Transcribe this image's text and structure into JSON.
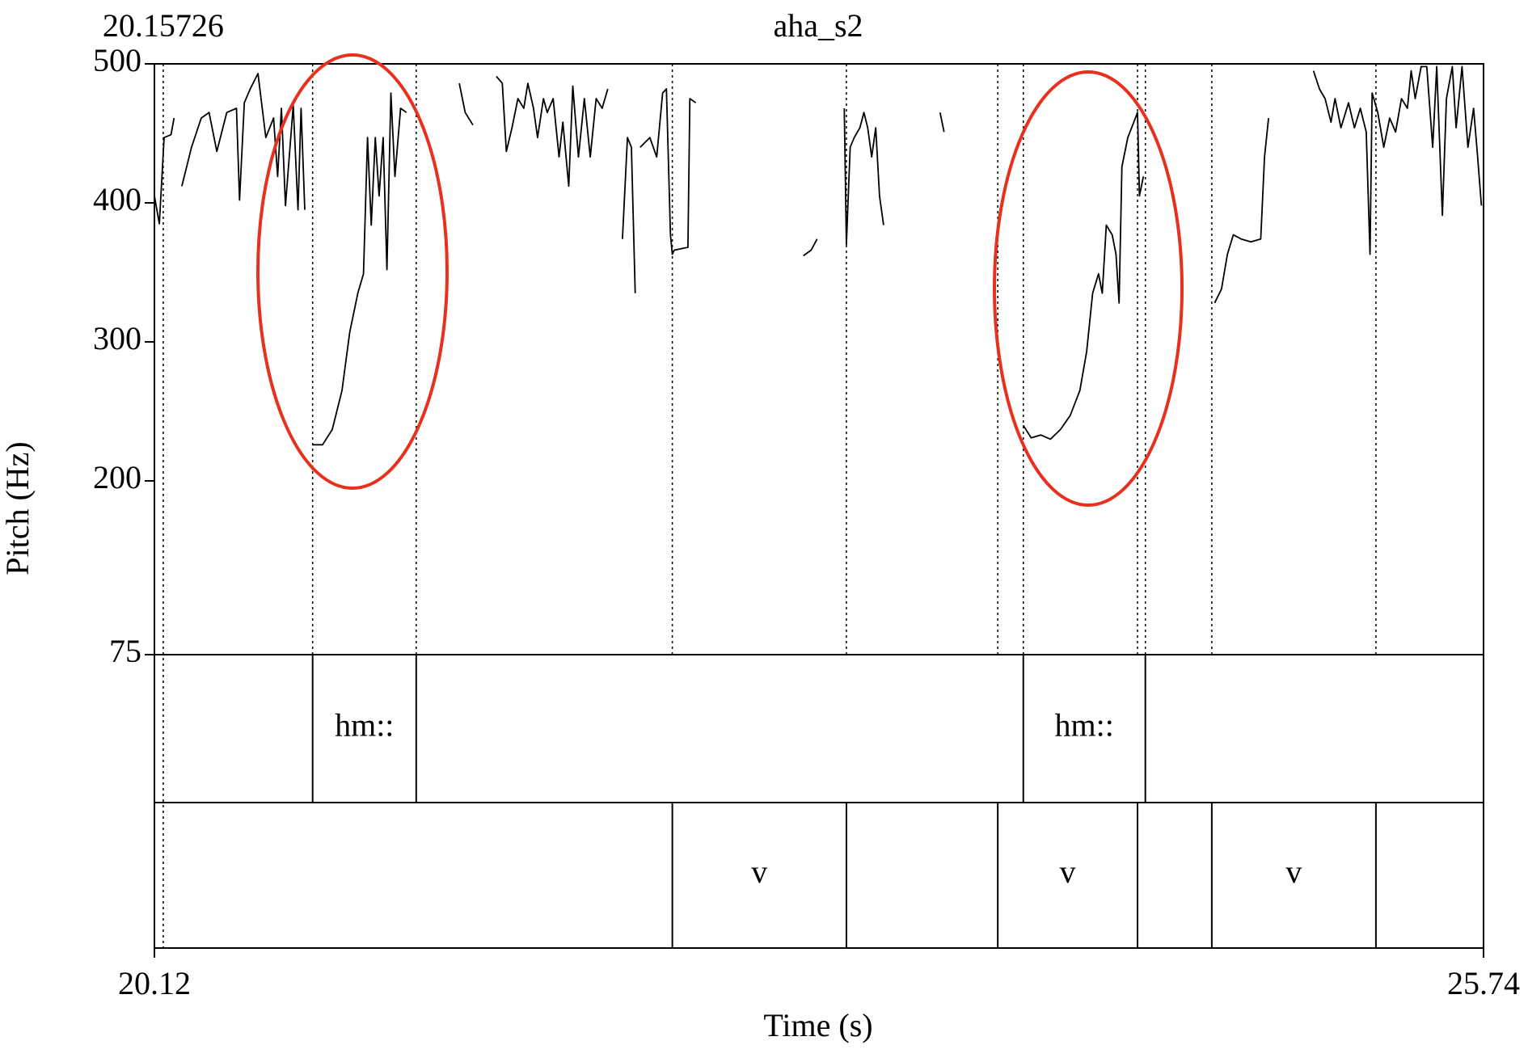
{
  "chart_data": {
    "type": "line",
    "title": "aha_s2",
    "x_label": "Time (s)",
    "y_label": "Pitch (Hz)",
    "xlim": [
      20.12,
      25.74
    ],
    "xticks": [
      20.12,
      25.74
    ],
    "ylim": [
      75,
      500
    ],
    "yticks": [
      500,
      400,
      300,
      200,
      75
    ],
    "cursor": 20.15726,
    "series": [
      {
        "color": "#000000",
        "x": [
          20.12,
          20.141,
          20.161,
          20.19,
          20.203,
          null,
          20.236,
          20.277,
          20.318,
          20.351,
          20.384,
          20.426,
          20.467,
          20.48,
          20.5,
          20.525,
          20.558,
          20.591,
          20.624,
          20.641,
          20.657,
          20.674,
          20.707,
          20.727,
          20.74,
          20.756,
          null,
          20.789,
          20.831,
          20.872,
          20.913,
          20.946,
          20.98,
          21.004,
          21.021,
          21.037,
          21.054,
          21.07,
          21.087,
          21.103,
          21.12,
          21.137,
          21.161,
          21.186,
          null,
          21.409,
          21.434,
          21.467,
          null,
          21.566,
          21.591,
          21.608,
          21.632,
          21.657,
          21.682,
          21.699,
          21.723,
          21.74,
          21.765,
          21.781,
          21.806,
          21.831,
          21.847,
          21.872,
          21.889,
          21.913,
          21.938,
          21.963,
          21.988,
          22.013,
          22.037,
          null,
          22.099,
          22.12,
          22.137,
          22.153,
          null,
          22.174,
          22.215,
          22.244,
          22.269,
          22.285,
          22.302,
          22.31,
          22.318,
          22.376,
          22.384,
          22.409,
          null,
          22.864,
          22.897,
          22.922,
          null,
          23.037,
          23.046,
          23.062,
          23.079,
          23.103,
          23.12,
          23.136,
          23.153,
          23.17,
          23.186,
          23.203,
          null,
          23.442,
          23.459,
          null,
          23.794,
          23.827,
          23.868,
          23.909,
          23.951,
          23.992,
          24.033,
          24.062,
          24.087,
          24.112,
          24.128,
          24.145,
          24.17,
          24.186,
          24.199,
          24.211,
          24.236,
          24.261,
          24.277,
          24.285,
          24.302,
          null,
          24.603,
          24.632,
          24.657,
          24.682,
          24.715,
          24.756,
          24.798,
          24.814,
          24.831,
          null,
          25.021,
          25.046,
          25.07,
          25.095,
          25.112,
          25.137,
          25.169,
          25.194,
          25.219,
          25.244,
          25.26,
          25.269,
          25.293,
          25.318,
          25.343,
          25.368,
          25.393,
          25.418,
          25.434,
          25.451,
          25.476,
          25.5,
          25.525,
          25.542,
          25.566,
          25.583,
          25.608,
          25.624,
          25.649,
          25.674,
          25.698,
          25.715,
          25.731
        ],
        "values": [
          405,
          385,
          447,
          449,
          461,
          null,
          412,
          440,
          461,
          465,
          437,
          465,
          468,
          402,
          472,
          482,
          493,
          447,
          461,
          419,
          468,
          398,
          470,
          395,
          468,
          395,
          null,
          226,
          226,
          237,
          265,
          307,
          335,
          349,
          447,
          384,
          447,
          405,
          447,
          352,
          479,
          419,
          468,
          465,
          null,
          486,
          465,
          456,
          null,
          491,
          486,
          437,
          454,
          475,
          468,
          486,
          468,
          447,
          475,
          465,
          475,
          433,
          458,
          412,
          484,
          433,
          475,
          433,
          475,
          468,
          482,
          null,
          374,
          447,
          440,
          335,
          null,
          440,
          447,
          433,
          479,
          482,
          377,
          363,
          366,
          368,
          475,
          472,
          null,
          362,
          366,
          374,
          null,
          468,
          370,
          440,
          447,
          454,
          465,
          454,
          433,
          454,
          405,
          384,
          null,
          465,
          451,
          null,
          240,
          231,
          233,
          230,
          237,
          247,
          265,
          293,
          335,
          349,
          335,
          384,
          377,
          363,
          328,
          426,
          447,
          458,
          465,
          405,
          419,
          null,
          328,
          338,
          363,
          377,
          374,
          372,
          374,
          433,
          461,
          null,
          495,
          482,
          475,
          458,
          475,
          454,
          472,
          454,
          468,
          451,
          363,
          479,
          465,
          440,
          461,
          451,
          475,
          468,
          495,
          475,
          498,
          498,
          440,
          498,
          391,
          475,
          498,
          454,
          498,
          440,
          468,
          433,
          398
        ]
      }
    ],
    "tiers": [
      {
        "intervals": [
          {
            "start": 20.789,
            "end": 21.227,
            "label": "hm::"
          },
          {
            "start": 23.794,
            "end": 24.31,
            "label": "hm::"
          }
        ]
      },
      {
        "intervals": [
          {
            "start": 22.31,
            "end": 23.046,
            "label": "v"
          },
          {
            "start": 23.686,
            "end": 24.277,
            "label": "v"
          },
          {
            "start": 24.591,
            "end": 25.285,
            "label": "v"
          }
        ]
      }
    ]
  }
}
